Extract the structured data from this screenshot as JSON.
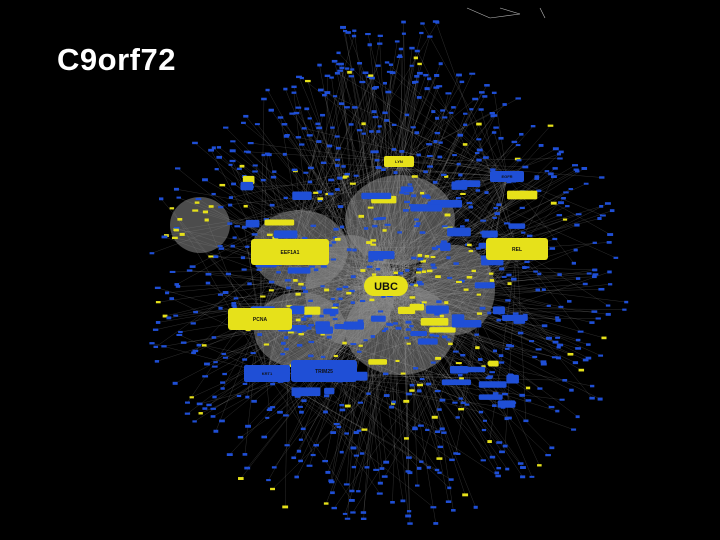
{
  "slide": {
    "title": "C9orf72"
  },
  "network": {
    "node_color": "#1f4fd6",
    "highlight_color": "#e6e11a",
    "edge_color": "#b8b8b8",
    "background": "#000000",
    "hubs": [
      {
        "label": "UBC",
        "color": "yellow"
      },
      {
        "label": "EEF1A1",
        "color": "yellow"
      },
      {
        "label": "PCNA",
        "color": "yellow"
      },
      {
        "label": "REL",
        "color": "yellow"
      },
      {
        "label": "TRIM25",
        "color": "blue"
      },
      {
        "label": "KRT1",
        "color": "blue"
      },
      {
        "label": "LYN",
        "color": "yellow"
      },
      {
        "label": "EGFR",
        "color": "blue"
      }
    ]
  }
}
